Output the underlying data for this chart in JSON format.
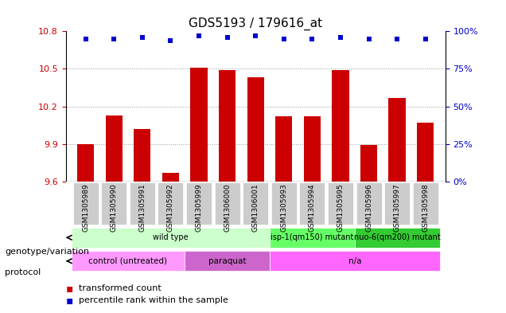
{
  "title": "GDS5193 / 179616_at",
  "samples": [
    "GSM1305989",
    "GSM1305990",
    "GSM1305991",
    "GSM1305992",
    "GSM1305999",
    "GSM1306000",
    "GSM1306001",
    "GSM1305993",
    "GSM1305994",
    "GSM1305995",
    "GSM1305996",
    "GSM1305997",
    "GSM1305998"
  ],
  "transformed_count": [
    9.9,
    10.13,
    10.02,
    9.67,
    10.51,
    10.49,
    10.43,
    10.12,
    10.12,
    10.49,
    9.89,
    10.27,
    10.07
  ],
  "percentile_rank": [
    95,
    95,
    96,
    94,
    97,
    96,
    97,
    95,
    95,
    96,
    95,
    95,
    95
  ],
  "ylim": [
    9.6,
    10.8
  ],
  "yticks": [
    9.6,
    9.9,
    10.2,
    10.5,
    10.8
  ],
  "right_yticks": [
    0,
    25,
    50,
    75,
    100
  ],
  "right_ylim": [
    0,
    100
  ],
  "bar_color": "#cc0000",
  "dot_color": "#0000cc",
  "bar_width": 0.6,
  "genotype_groups": [
    {
      "label": "wild type",
      "start": 0,
      "end": 7,
      "color": "#ccffcc"
    },
    {
      "label": "isp-1(qm150) mutant",
      "start": 7,
      "end": 10,
      "color": "#66ff66"
    },
    {
      "label": "nuo-6(qm200) mutant",
      "start": 10,
      "end": 13,
      "color": "#33cc33"
    }
  ],
  "protocol_groups": [
    {
      "label": "control (untreated)",
      "start": 0,
      "end": 4,
      "color": "#ff99ff"
    },
    {
      "label": "paraquat",
      "start": 4,
      "end": 7,
      "color": "#cc66cc"
    },
    {
      "label": "n/a",
      "start": 7,
      "end": 13,
      "color": "#ff66ff"
    }
  ],
  "legend_items": [
    {
      "label": "transformed count",
      "color": "#cc0000",
      "marker": "s"
    },
    {
      "label": "percentile rank within the sample",
      "color": "#0000cc",
      "marker": "s"
    }
  ],
  "background_color": "#ffffff",
  "grid_color": "#999999",
  "tick_label_bg": "#cccccc"
}
